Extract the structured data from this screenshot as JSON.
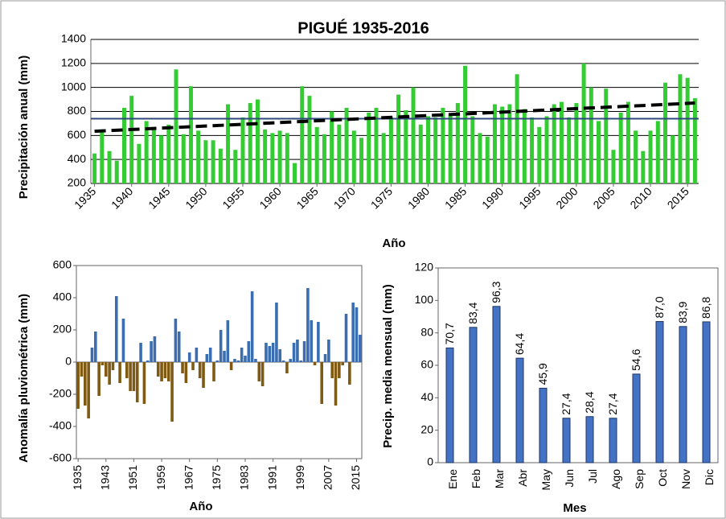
{
  "chart_data": [
    {
      "type": "bar",
      "title": "PIGUÉ 1935-2016",
      "x_label": "Año",
      "y_label": "Precipitación anual  (mm)",
      "x": [
        1935,
        1936,
        1937,
        1938,
        1939,
        1940,
        1941,
        1942,
        1943,
        1944,
        1945,
        1946,
        1947,
        1948,
        1949,
        1950,
        1951,
        1952,
        1953,
        1954,
        1955,
        1956,
        1957,
        1958,
        1959,
        1960,
        1961,
        1962,
        1963,
        1964,
        1965,
        1966,
        1967,
        1968,
        1969,
        1970,
        1971,
        1972,
        1973,
        1974,
        1975,
        1976,
        1977,
        1978,
        1979,
        1980,
        1981,
        1982,
        1983,
        1984,
        1985,
        1986,
        1987,
        1988,
        1989,
        1990,
        1991,
        1992,
        1993,
        1994,
        1995,
        1996,
        1997,
        1998,
        1999,
        2000,
        2001,
        2002,
        2003,
        2004,
        2005,
        2006,
        2007,
        2008,
        2009,
        2010,
        2011,
        2012,
        2013,
        2014,
        2015,
        2016
      ],
      "values": [
        450,
        650,
        470,
        390,
        830,
        930,
        530,
        720,
        650,
        600,
        690,
        1150,
        610,
        1010,
        640,
        560,
        560,
        490,
        860,
        480,
        750,
        870,
        900,
        650,
        620,
        640,
        620,
        370,
        1010,
        930,
        670,
        610,
        800,
        690,
        830,
        640,
        580,
        790,
        830,
        620,
        750,
        940,
        810,
        1000,
        690,
        760,
        750,
        830,
        780,
        870,
        1180,
        760,
        620,
        590,
        860,
        840,
        860,
        1110,
        820,
        750,
        670,
        760,
        860,
        880,
        750,
        870,
        1200,
        1000,
        720,
        990,
        480,
        790,
        880,
        640,
        470,
        640,
        720,
        1040,
        600,
        1110,
        1080,
        910
      ],
      "color": "#33cc33",
      "mean": 740,
      "mean_color": "#2f4a7a",
      "trend": {
        "x": [
          1935,
          2016
        ],
        "values": [
          635,
          870
        ],
        "color": "#000000"
      },
      "xlim": [
        1934.5,
        2016.5
      ],
      "xticks": [
        1935,
        1940,
        1945,
        1950,
        1955,
        1960,
        1965,
        1970,
        1975,
        1980,
        1985,
        1990,
        1995,
        2000,
        2005,
        2010,
        2015
      ],
      "ylim": [
        200,
        1400
      ],
      "yticks": [
        200,
        400,
        600,
        800,
        1000,
        1200,
        1400
      ],
      "grid": true
    },
    {
      "type": "bar",
      "x_label": "Año",
      "y_label": "Anomalía pluviométrica (mm)",
      "x": [
        1935,
        1936,
        1937,
        1938,
        1939,
        1940,
        1941,
        1942,
        1943,
        1944,
        1945,
        1946,
        1947,
        1948,
        1949,
        1950,
        1951,
        1952,
        1953,
        1954,
        1955,
        1956,
        1957,
        1958,
        1959,
        1960,
        1961,
        1962,
        1963,
        1964,
        1965,
        1966,
        1967,
        1968,
        1969,
        1970,
        1971,
        1972,
        1973,
        1974,
        1975,
        1976,
        1977,
        1978,
        1979,
        1980,
        1981,
        1982,
        1983,
        1984,
        1985,
        1986,
        1987,
        1988,
        1989,
        1990,
        1991,
        1992,
        1993,
        1994,
        1995,
        1996,
        1997,
        1998,
        1999,
        2000,
        2001,
        2002,
        2003,
        2004,
        2005,
        2006,
        2007,
        2008,
        2009,
        2010,
        2011,
        2012,
        2013,
        2014,
        2015,
        2016
      ],
      "values": [
        -290,
        -90,
        -270,
        -350,
        90,
        190,
        -210,
        -20,
        -90,
        -140,
        -50,
        410,
        -130,
        270,
        -100,
        -180,
        -180,
        -250,
        120,
        -260,
        10,
        130,
        160,
        -90,
        -120,
        -100,
        -120,
        -370,
        270,
        190,
        -70,
        -130,
        60,
        -50,
        90,
        -100,
        -160,
        50,
        90,
        -120,
        10,
        200,
        70,
        260,
        -50,
        20,
        10,
        90,
        40,
        130,
        440,
        20,
        -120,
        -150,
        120,
        100,
        120,
        370,
        80,
        10,
        -70,
        20,
        120,
        140,
        10,
        130,
        460,
        260,
        -20,
        250,
        -260,
        50,
        140,
        -100,
        -270,
        -100,
        -20,
        300,
        -140,
        370,
        340,
        170
      ],
      "color": "#3a6eb0",
      "negative_color": "#7f5a12",
      "xlim": [
        1934.5,
        2016.5
      ],
      "xticks": [
        1935,
        1943,
        1951,
        1959,
        1967,
        1975,
        1983,
        1991,
        1999,
        2007,
        2015
      ],
      "ylim": [
        -600,
        600
      ],
      "yticks": [
        -600,
        -400,
        -200,
        0,
        200,
        400,
        600
      ],
      "grid": false
    },
    {
      "type": "bar",
      "x_label": "Mes",
      "y_label": "Precip. media mensual (mm)",
      "categories": [
        "Ene",
        "Feb",
        "Mar",
        "Abr",
        "May",
        "Jun",
        "Jul",
        "Ago",
        "Sep",
        "Oct",
        "Nov",
        "Dic"
      ],
      "values": [
        70.7,
        83.4,
        96.3,
        64.4,
        45.9,
        27.4,
        28.4,
        27.4,
        54.6,
        87.0,
        83.9,
        86.8
      ],
      "value_labels": [
        "70,7",
        "83,4",
        "96,3",
        "64,4",
        "45,9",
        "27,4",
        "28,4",
        "27,4",
        "54,6",
        "87,0",
        "83,9",
        "86,8"
      ],
      "color": "#4472c4",
      "ylim": [
        0,
        120
      ],
      "yticks": [
        0,
        20,
        40,
        60,
        80,
        100,
        120
      ],
      "grid": false
    }
  ]
}
